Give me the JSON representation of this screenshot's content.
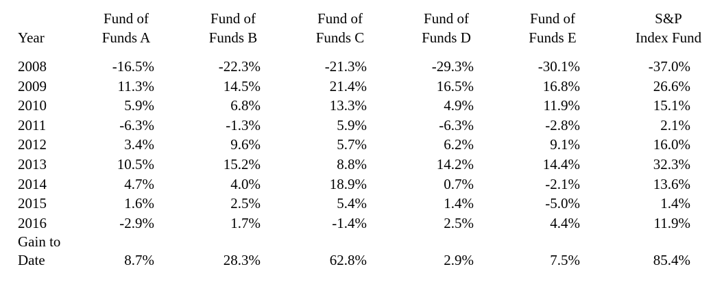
{
  "table": {
    "headers": [
      {
        "line1": "",
        "line2": "Year"
      },
      {
        "line1": "Fund of",
        "line2": "Funds A"
      },
      {
        "line1": "Fund of",
        "line2": "Funds B"
      },
      {
        "line1": "Fund of",
        "line2": "Funds C"
      },
      {
        "line1": "Fund of",
        "line2": "Funds D"
      },
      {
        "line1": "Fund of",
        "line2": "Funds E"
      },
      {
        "line1": "S&P",
        "line2": "Index Fund"
      }
    ],
    "rows": [
      [
        "2008",
        "-16.5%",
        "-22.3%",
        "-21.3%",
        "-29.3%",
        "-30.1%",
        "-37.0%"
      ],
      [
        "2009",
        "11.3%",
        "14.5%",
        "21.4%",
        "16.5%",
        "16.8%",
        "26.6%"
      ],
      [
        "2010",
        "5.9%",
        "6.8%",
        "13.3%",
        "4.9%",
        "11.9%",
        "15.1%"
      ],
      [
        "2011",
        "-6.3%",
        "-1.3%",
        "5.9%",
        "-6.3%",
        "-2.8%",
        "2.1%"
      ],
      [
        "2012",
        "3.4%",
        "9.6%",
        "5.7%",
        "6.2%",
        "9.1%",
        "16.0%"
      ],
      [
        "2013",
        "10.5%",
        "15.2%",
        "8.8%",
        "14.2%",
        "14.4%",
        "32.3%"
      ],
      [
        "2014",
        "4.7%",
        "4.0%",
        "18.9%",
        "0.7%",
        "-2.1%",
        "13.6%"
      ],
      [
        "2015",
        "1.6%",
        "2.5%",
        "5.4%",
        "1.4%",
        "-5.0%",
        "1.4%"
      ],
      [
        "2016",
        "-2.9%",
        "1.7%",
        "-1.4%",
        "2.5%",
        "4.4%",
        "11.9%"
      ]
    ],
    "gain_label_line1": "Gain to",
    "gain_label_line2": "Date",
    "gain_values": [
      "8.7%",
      "28.3%",
      "62.8%",
      "2.9%",
      "7.5%",
      "85.4%"
    ]
  }
}
